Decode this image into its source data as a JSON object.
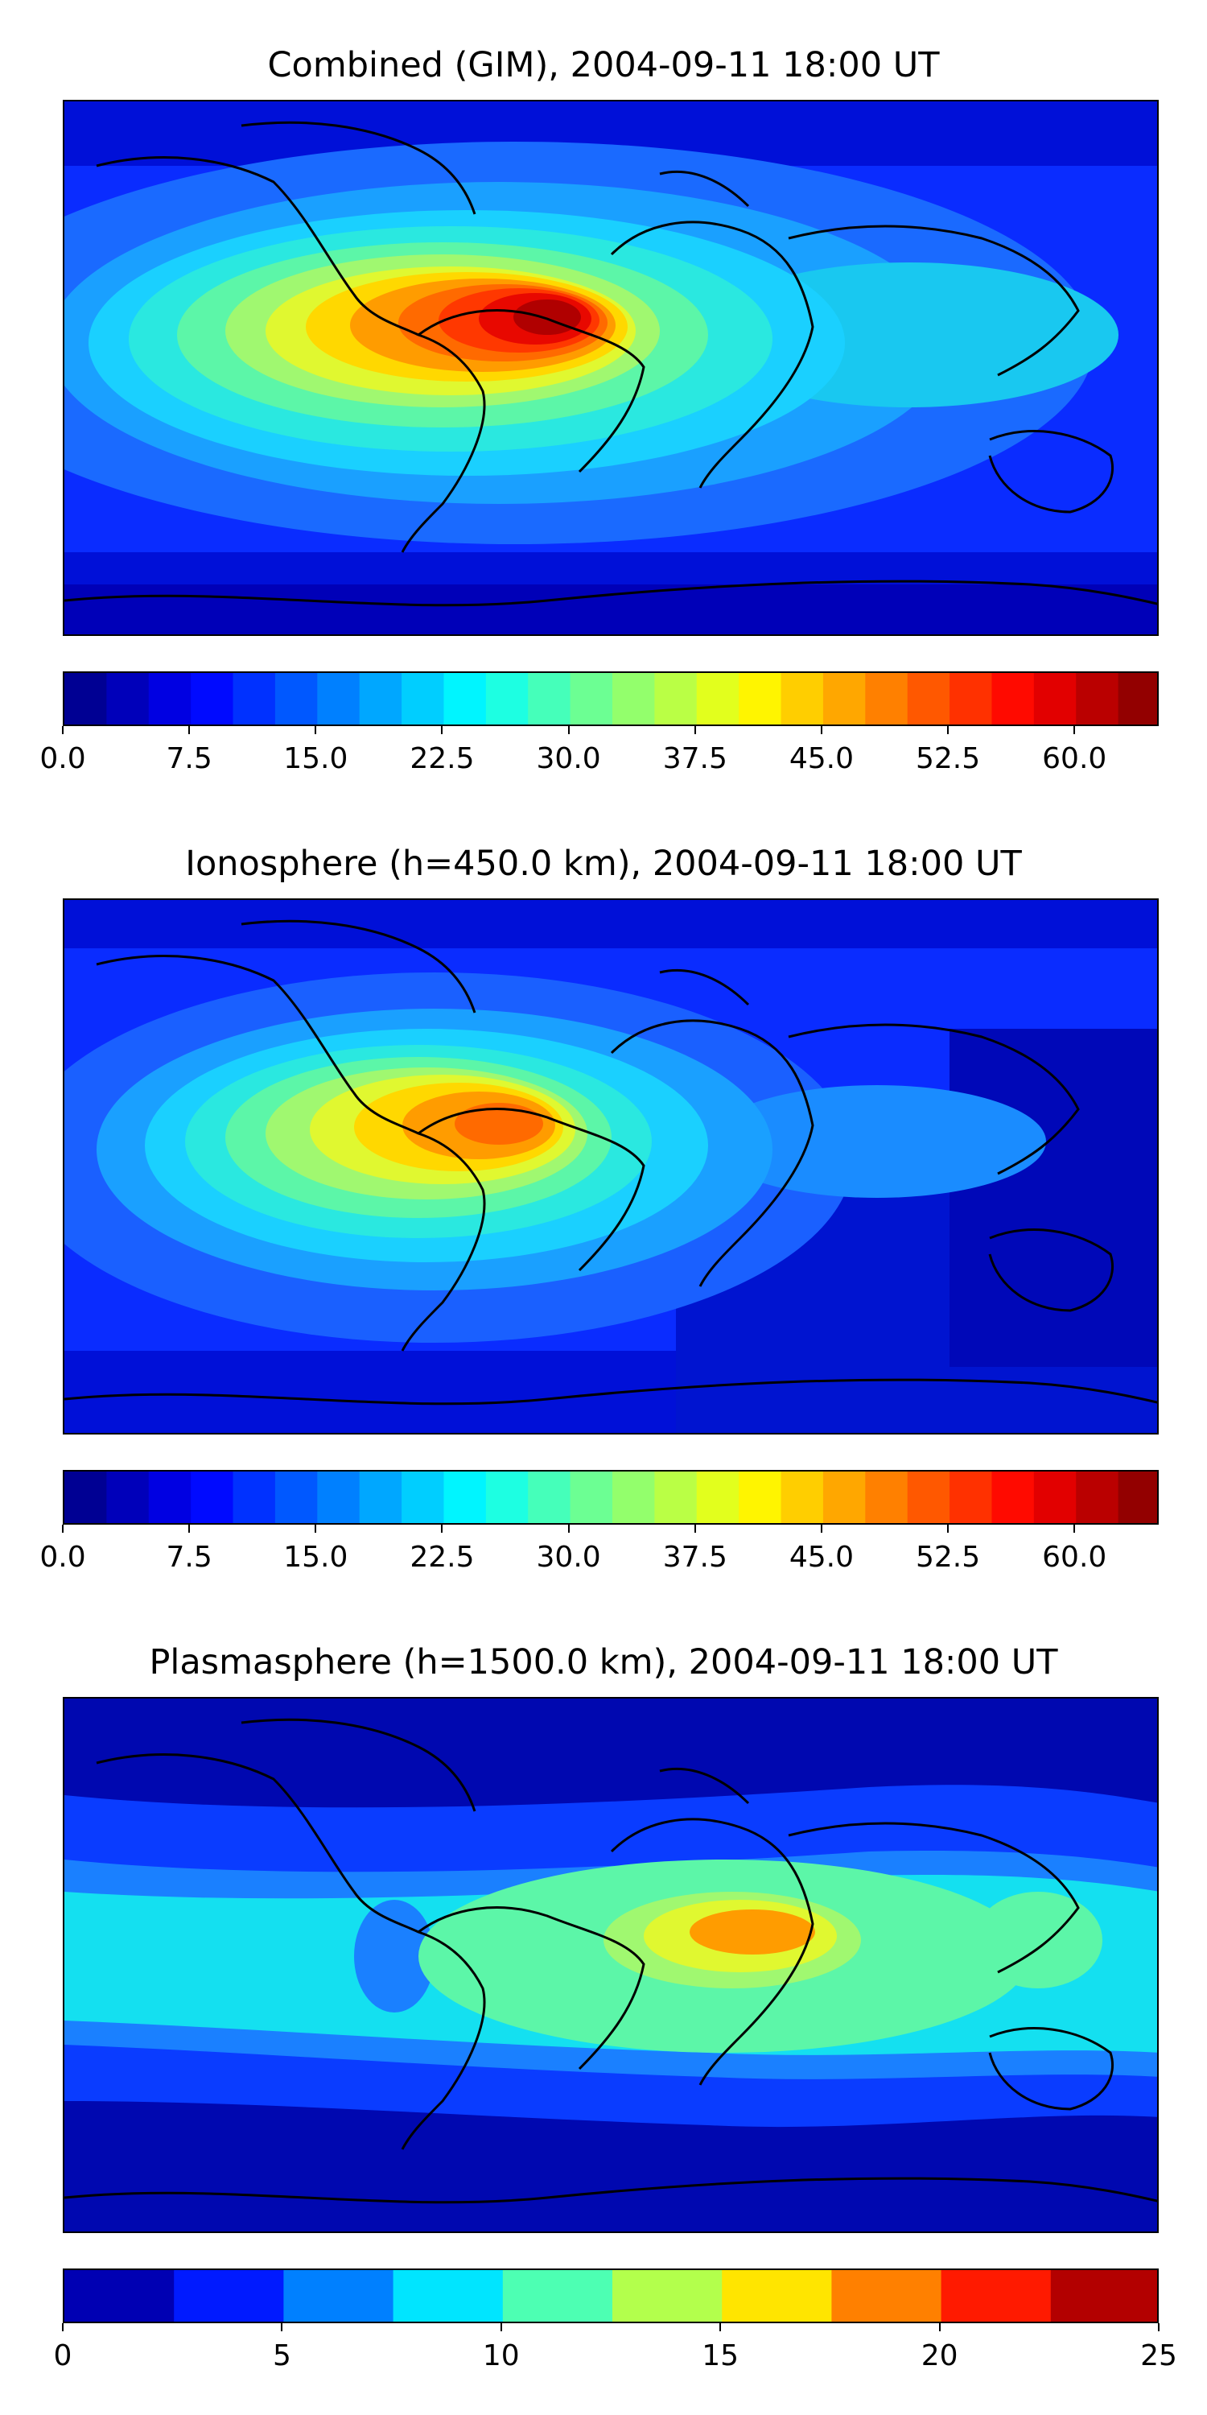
{
  "panels": [
    {
      "title": "Combined (GIM), 2004-09-11 18:00 UT",
      "colorbar": {
        "vmin": 0,
        "vmax": 65,
        "levels": 26,
        "tick_labels": [
          "0.0",
          "7.5",
          "15.0",
          "22.5",
          "30.0",
          "37.5",
          "45.0",
          "52.5",
          "60.0"
        ],
        "tick_values": [
          0,
          7.5,
          15,
          22.5,
          30,
          37.5,
          45,
          52.5,
          60
        ]
      }
    },
    {
      "title": "Ionosphere  (h=450.0 km), 2004-09-11 18:00 UT",
      "colorbar": {
        "vmin": 0,
        "vmax": 65,
        "levels": 26,
        "tick_labels": [
          "0.0",
          "7.5",
          "15.0",
          "22.5",
          "30.0",
          "37.5",
          "45.0",
          "52.5",
          "60.0"
        ],
        "tick_values": [
          0,
          7.5,
          15,
          22.5,
          30,
          37.5,
          45,
          52.5,
          60
        ]
      }
    },
    {
      "title": "Plasmasphere (h=1500.0 km), 2004-09-11 18:00 UT",
      "colorbar": {
        "vmin": 0,
        "vmax": 25,
        "levels": 10,
        "tick_labels": [
          "0",
          "5",
          "10",
          "15",
          "20",
          "25"
        ],
        "tick_values": [
          0,
          5,
          10,
          15,
          20,
          25
        ]
      }
    }
  ],
  "colormap": "jet"
}
